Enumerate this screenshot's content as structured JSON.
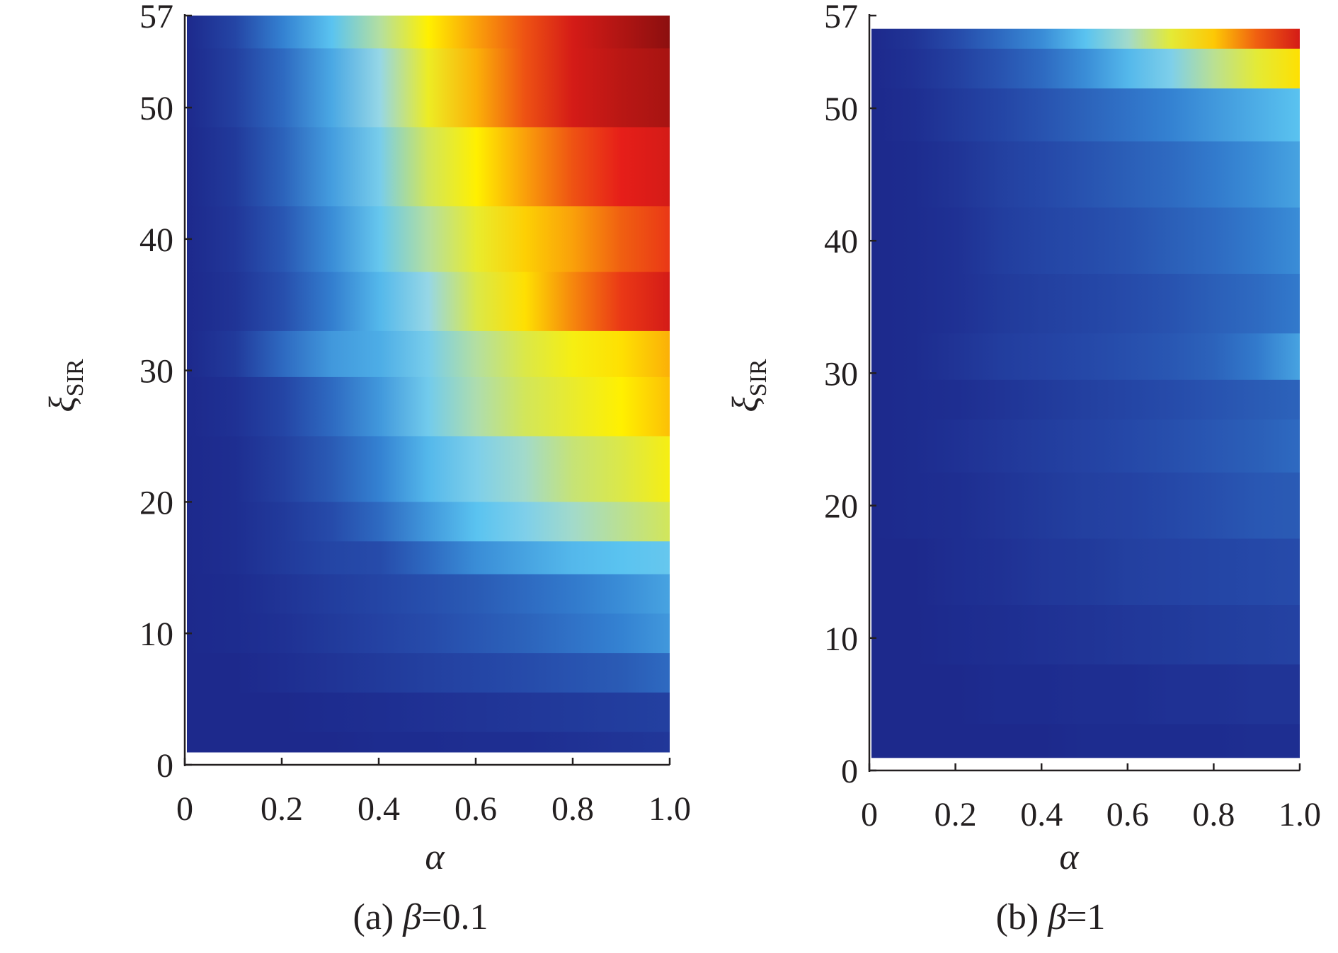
{
  "chart_data": [
    {
      "type": "heatmap",
      "panel": "a",
      "caption_prefix": "(a) ",
      "caption_symbol": "β",
      "caption_value": "=0.1",
      "xlabel": "α",
      "ylabel_main": "ξ",
      "ylabel_sub": "SIR",
      "xlim": [
        0,
        1.0
      ],
      "ylim": [
        0,
        57
      ],
      "data_y_range": [
        1,
        57
      ],
      "x_ticks": [
        0,
        0.2,
        0.4,
        0.6,
        0.8,
        1.0
      ],
      "x_tick_labels": [
        "0",
        "0.2",
        "0.4",
        "0.6",
        "0.8",
        "1.0"
      ],
      "y_ticks": [
        0,
        10,
        20,
        30,
        40,
        50,
        57
      ],
      "y_tick_labels": [
        "0",
        "10",
        "20",
        "30",
        "40",
        "50",
        "57"
      ],
      "color_scale": "jet (dark blue low → cyan → yellow → red → dark red high)",
      "grid": false,
      "legend": "none",
      "intensity_rows": [
        {
          "y": 57,
          "values": [
            0.02,
            0.12,
            0.28,
            0.4,
            0.55,
            0.7,
            0.8,
            0.86,
            0.92,
            0.96,
            1.0
          ]
        },
        {
          "y": 52,
          "values": [
            0.02,
            0.1,
            0.22,
            0.35,
            0.5,
            0.66,
            0.78,
            0.86,
            0.92,
            0.95,
            0.97
          ]
        },
        {
          "y": 45,
          "values": [
            0.02,
            0.08,
            0.2,
            0.33,
            0.45,
            0.6,
            0.7,
            0.8,
            0.86,
            0.9,
            0.92
          ]
        },
        {
          "y": 40,
          "values": [
            0.02,
            0.07,
            0.17,
            0.3,
            0.42,
            0.55,
            0.65,
            0.74,
            0.8,
            0.85,
            0.88
          ]
        },
        {
          "y": 35,
          "values": [
            0.02,
            0.06,
            0.15,
            0.27,
            0.38,
            0.5,
            0.62,
            0.72,
            0.82,
            0.88,
            0.92
          ]
        },
        {
          "y": 31,
          "values": [
            0.02,
            0.08,
            0.22,
            0.32,
            0.36,
            0.45,
            0.55,
            0.62,
            0.68,
            0.72,
            0.78
          ]
        },
        {
          "y": 28,
          "values": [
            0.02,
            0.05,
            0.12,
            0.22,
            0.32,
            0.44,
            0.54,
            0.6,
            0.65,
            0.7,
            0.76
          ]
        },
        {
          "y": 22,
          "values": [
            0.02,
            0.04,
            0.1,
            0.18,
            0.28,
            0.38,
            0.46,
            0.52,
            0.58,
            0.62,
            0.68
          ]
        },
        {
          "y": 18,
          "values": [
            0.02,
            0.04,
            0.08,
            0.14,
            0.22,
            0.32,
            0.4,
            0.46,
            0.52,
            0.56,
            0.6
          ]
        },
        {
          "y": 16,
          "values": [
            0.02,
            0.04,
            0.08,
            0.12,
            0.14,
            0.22,
            0.3,
            0.34,
            0.38,
            0.4,
            0.42
          ]
        },
        {
          "y": 13,
          "values": [
            0.02,
            0.03,
            0.06,
            0.09,
            0.12,
            0.15,
            0.18,
            0.22,
            0.26,
            0.3,
            0.34
          ]
        },
        {
          "y": 10,
          "values": [
            0.02,
            0.03,
            0.05,
            0.08,
            0.11,
            0.14,
            0.17,
            0.2,
            0.24,
            0.28,
            0.32
          ]
        },
        {
          "y": 7,
          "values": [
            0.02,
            0.02,
            0.04,
            0.06,
            0.08,
            0.1,
            0.12,
            0.14,
            0.16,
            0.18,
            0.22
          ]
        },
        {
          "y": 4,
          "values": [
            0.02,
            0.02,
            0.02,
            0.03,
            0.04,
            0.05,
            0.06,
            0.07,
            0.08,
            0.09,
            0.1
          ]
        },
        {
          "y": 1,
          "values": [
            0.02,
            0.02,
            0.02,
            0.02,
            0.03,
            0.03,
            0.04,
            0.04,
            0.05,
            0.06,
            0.07
          ]
        }
      ]
    },
    {
      "type": "heatmap",
      "panel": "b",
      "caption_prefix": "(b) ",
      "caption_symbol": "β",
      "caption_value": "=1",
      "xlabel": "α",
      "ylabel_main": "ξ",
      "ylabel_sub": "SIR",
      "xlim": [
        0,
        1.0
      ],
      "ylim": [
        0,
        57
      ],
      "data_y_range": [
        1,
        56
      ],
      "x_ticks": [
        0,
        0.2,
        0.4,
        0.6,
        0.8,
        1.0
      ],
      "x_tick_labels": [
        "0",
        "0.2",
        "0.4",
        "0.6",
        "0.8",
        "1.0"
      ],
      "y_ticks": [
        0,
        10,
        20,
        30,
        40,
        50,
        57
      ],
      "y_tick_labels": [
        "0",
        "10",
        "20",
        "30",
        "40",
        "50",
        "57"
      ],
      "color_scale": "jet (dark blue low → cyan → yellow → red → dark red high)",
      "grid": false,
      "legend": "none",
      "intensity_rows": [
        {
          "y": 56,
          "values": [
            0.02,
            0.06,
            0.14,
            0.22,
            0.3,
            0.4,
            0.52,
            0.64,
            0.75,
            0.85,
            0.92
          ]
        },
        {
          "y": 53,
          "values": [
            0.02,
            0.05,
            0.1,
            0.16,
            0.22,
            0.3,
            0.38,
            0.46,
            0.56,
            0.64,
            0.72
          ]
        },
        {
          "y": 50,
          "values": [
            0.02,
            0.04,
            0.08,
            0.12,
            0.16,
            0.2,
            0.24,
            0.28,
            0.32,
            0.36,
            0.4
          ]
        },
        {
          "y": 45,
          "values": [
            0.02,
            0.03,
            0.06,
            0.1,
            0.13,
            0.16,
            0.19,
            0.22,
            0.26,
            0.3,
            0.34
          ]
        },
        {
          "y": 40,
          "values": [
            0.02,
            0.03,
            0.05,
            0.09,
            0.12,
            0.14,
            0.16,
            0.19,
            0.22,
            0.26,
            0.3
          ]
        },
        {
          "y": 35,
          "values": [
            0.02,
            0.03,
            0.05,
            0.08,
            0.1,
            0.12,
            0.14,
            0.16,
            0.19,
            0.22,
            0.26
          ]
        },
        {
          "y": 31,
          "values": [
            0.02,
            0.03,
            0.06,
            0.09,
            0.11,
            0.13,
            0.15,
            0.17,
            0.2,
            0.26,
            0.34
          ]
        },
        {
          "y": 28,
          "values": [
            0.02,
            0.03,
            0.04,
            0.06,
            0.08,
            0.1,
            0.12,
            0.14,
            0.16,
            0.18,
            0.2
          ]
        },
        {
          "y": 25,
          "values": [
            0.02,
            0.03,
            0.05,
            0.07,
            0.09,
            0.11,
            0.13,
            0.15,
            0.17,
            0.19,
            0.22
          ]
        },
        {
          "y": 20,
          "values": [
            0.02,
            0.03,
            0.04,
            0.06,
            0.08,
            0.1,
            0.11,
            0.13,
            0.15,
            0.17,
            0.18
          ]
        },
        {
          "y": 15,
          "values": [
            0.02,
            0.02,
            0.04,
            0.05,
            0.07,
            0.08,
            0.1,
            0.11,
            0.12,
            0.13,
            0.14
          ]
        },
        {
          "y": 10,
          "values": [
            0.02,
            0.02,
            0.03,
            0.04,
            0.05,
            0.06,
            0.07,
            0.08,
            0.09,
            0.1,
            0.11
          ]
        },
        {
          "y": 6,
          "values": [
            0.02,
            0.02,
            0.02,
            0.03,
            0.03,
            0.04,
            0.04,
            0.05,
            0.05,
            0.06,
            0.06
          ]
        },
        {
          "y": 1,
          "values": [
            0.02,
            0.02,
            0.02,
            0.02,
            0.02,
            0.03,
            0.03,
            0.03,
            0.03,
            0.04,
            0.04
          ]
        }
      ]
    }
  ]
}
